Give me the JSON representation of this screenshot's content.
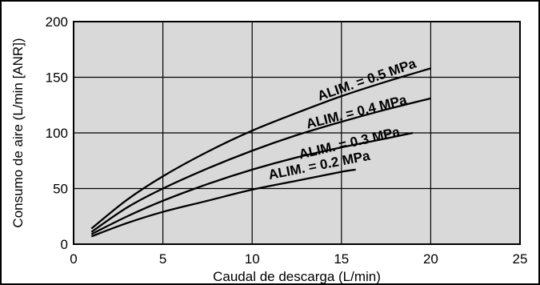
{
  "chart_data": {
    "type": "line",
    "title": "",
    "xlabel": "Caudal de descarga (L/min)",
    "ylabel": "Consumo de aire (L/min [ANR])",
    "xlim": [
      0,
      25
    ],
    "ylim": [
      0,
      200
    ],
    "x_ticks": [
      0,
      5,
      10,
      15,
      20,
      25
    ],
    "y_ticks": [
      0,
      50,
      100,
      150,
      200
    ],
    "grid": true,
    "plot_background": "#d9d9d9",
    "line_color": "#000000",
    "series": [
      {
        "name": "ALIM. = 0.5 MPa",
        "x": [
          1,
          3,
          5,
          7.5,
          10,
          12.5,
          15,
          17.5,
          20
        ],
        "y": [
          14,
          40,
          61,
          83,
          102,
          118,
          133,
          146,
          158
        ]
      },
      {
        "name": "ALIM. = 0.4 MPa",
        "x": [
          1,
          3,
          5,
          7.5,
          10,
          12.5,
          15,
          17.5,
          20
        ],
        "y": [
          11,
          33,
          50,
          68,
          84,
          98,
          110,
          121,
          131
        ]
      },
      {
        "name": "ALIM. = 0.3 MPa",
        "x": [
          1,
          3,
          5,
          7.5,
          10,
          12.5,
          15,
          17.5,
          19
        ],
        "y": [
          9,
          25,
          39,
          54,
          67,
          78,
          87,
          95,
          100
        ]
      },
      {
        "name": "ALIM. = 0.2 MPa",
        "x": [
          1,
          3,
          5,
          7.5,
          10,
          12.5,
          15,
          15.8
        ],
        "y": [
          7,
          19,
          29,
          39,
          49,
          57,
          65,
          67
        ]
      }
    ],
    "annotations": [
      {
        "text": "ALIM. = 0.5 MPa",
        "series": 0,
        "angle": -19,
        "x": 16.5,
        "y": 144
      },
      {
        "text": "ALIM. = 0.4 MPa",
        "series": 1,
        "angle": -14,
        "x": 15.9,
        "y": 115
      },
      {
        "text": "ALIM. = 0.3 MPa",
        "series": 2,
        "angle": -13,
        "x": 15.5,
        "y": 87
      },
      {
        "text": "ALIM. = 0.2 MPa",
        "series": 3,
        "angle": -11,
        "x": 13.8,
        "y": 67
      }
    ]
  }
}
